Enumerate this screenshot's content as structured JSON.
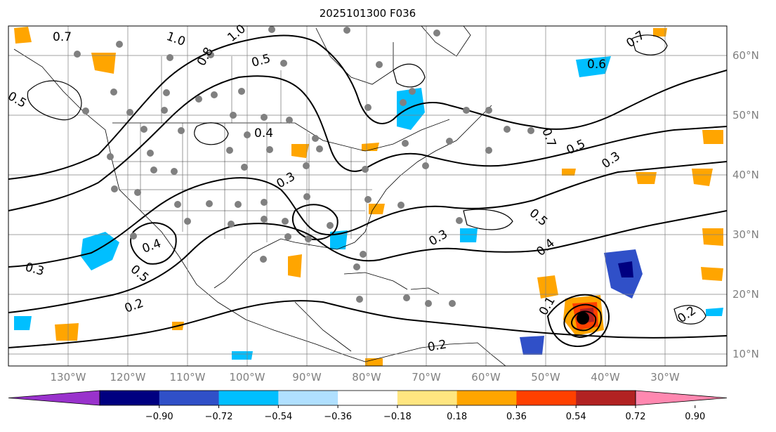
{
  "title": "2025101300 F036",
  "map": {
    "lon_labels": [
      "130°W",
      "120°W",
      "110°W",
      "100°W",
      "90°W",
      "80°W",
      "70°W",
      "60°W",
      "50°W",
      "40°W",
      "30°W"
    ],
    "lat_labels": [
      "60°N",
      "50°N",
      "40°N",
      "30°N",
      "20°N",
      "10°N"
    ],
    "contour_labels": [
      "1.0",
      "0.7",
      "0.5",
      "0.8",
      "0.4",
      "0.3",
      "0.2",
      "0.1",
      "0.6"
    ],
    "colors": {
      "land_outline": "#000000",
      "grid": "#808080",
      "station_dot": "#808080"
    }
  },
  "colorbar": {
    "ticks": [
      "−0.90",
      "−0.72",
      "−0.54",
      "−0.36",
      "−0.18",
      "0.18",
      "0.36",
      "0.54",
      "0.72",
      "0.90"
    ],
    "colors": [
      "#9932cc",
      "#000080",
      "#3050c8",
      "#00bfff",
      "#b0e0ff",
      "#ffffff",
      "#ffe680",
      "#ffa500",
      "#ff4000",
      "#b22222",
      "#ff88b0"
    ]
  }
}
